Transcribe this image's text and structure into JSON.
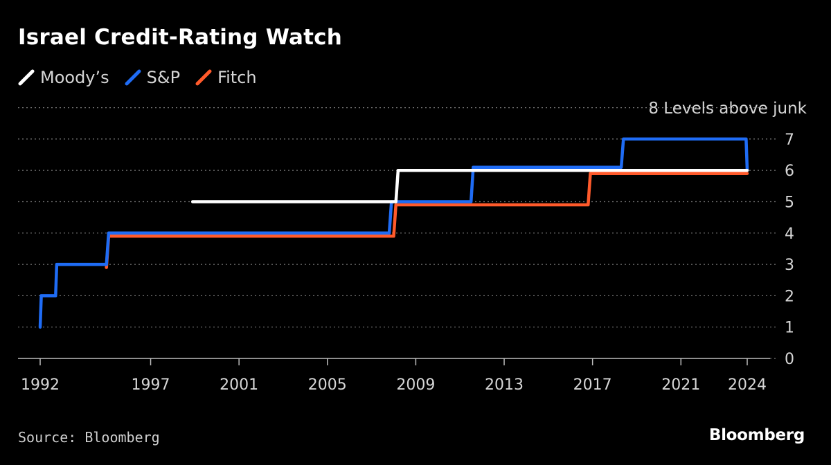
{
  "header": {
    "title": "Israel Credit-Rating Watch"
  },
  "footer": {
    "source": "Source: Bloomberg",
    "brand": "Bloomberg"
  },
  "chart_data": {
    "type": "line",
    "title": "Israel Credit-Rating Watch",
    "xlabel": "",
    "ylabel": "",
    "y_annotation": "8 Levels above junk",
    "xlim": [
      1991.0,
      2025.0
    ],
    "ylim": [
      0,
      8
    ],
    "x_ticks": [
      1992,
      1997,
      2001,
      2005,
      2009,
      2013,
      2017,
      2021,
      2024
    ],
    "y_ticks": [
      0,
      1,
      2,
      3,
      4,
      5,
      6,
      7
    ],
    "grid": true,
    "legend_position": "top-left",
    "series": [
      {
        "name": "Moody’s",
        "color": "#ffffff",
        "points": [
          [
            1998.9,
            5
          ],
          [
            2008.1,
            5
          ],
          [
            2008.2,
            6
          ],
          [
            2024.0,
            6
          ]
        ]
      },
      {
        "name": "S&P",
        "color": "#1f6cf5",
        "points": [
          [
            1992.0,
            1
          ],
          [
            1992.05,
            2
          ],
          [
            1992.7,
            2
          ],
          [
            1992.75,
            3
          ],
          [
            1995.0,
            3
          ],
          [
            1995.1,
            4
          ],
          [
            2007.8,
            4
          ],
          [
            2007.9,
            5
          ],
          [
            2011.5,
            5
          ],
          [
            2011.6,
            6.1
          ],
          [
            2018.3,
            6.1
          ],
          [
            2018.4,
            7
          ],
          [
            2023.95,
            7
          ],
          [
            2024.0,
            6
          ]
        ]
      },
      {
        "name": "Fitch",
        "color": "#ff5a2b",
        "points": [
          [
            1995.0,
            2.9
          ],
          [
            1995.1,
            3.9
          ],
          [
            2008.0,
            3.9
          ],
          [
            2008.1,
            4.9
          ],
          [
            2016.8,
            4.9
          ],
          [
            2016.9,
            5.9
          ],
          [
            2024.0,
            5.9
          ]
        ]
      }
    ]
  }
}
